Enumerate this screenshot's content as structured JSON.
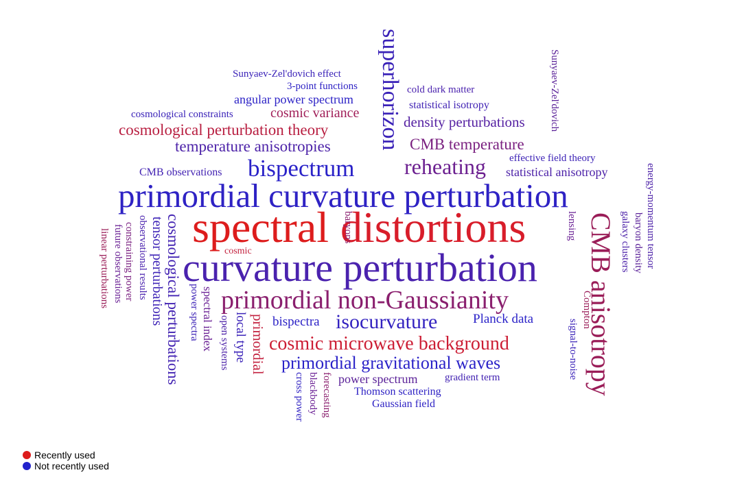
{
  "colors": {
    "recent": "#dd1c1c",
    "not_recent": "#2222cc"
  },
  "legend": {
    "recent_label": "Recently used",
    "not_recent_label": "Not recently used"
  },
  "words": [
    {
      "text": "spectral",
      "color": "#dd1c1c"
    },
    {
      "text": "distortions",
      "color": "#d81d2a"
    },
    {
      "text": "curvature perturbation",
      "color": "#4a22ae"
    },
    {
      "text": "primordial curvature perturbation",
      "color": "#2e22c4"
    },
    {
      "text": "primordial non-Gaussianity",
      "color": "#8a1f6e"
    },
    {
      "text": "CMB anisotropy",
      "color": "#9a1d58"
    },
    {
      "text": "superhorizon",
      "color": "#3a22b8"
    },
    {
      "text": "bispectrum",
      "color": "#2a22c8"
    },
    {
      "text": "reheating",
      "color": "#6c2090"
    },
    {
      "text": "isocurvature",
      "color": "#3322c0"
    },
    {
      "text": "cosmic microwave background",
      "color": "#cc1d34"
    },
    {
      "text": "primordial gravitational waves",
      "color": "#2a22c8"
    },
    {
      "text": "cosmological perturbation theory",
      "color": "#b81e40"
    },
    {
      "text": "temperature anisotropies",
      "color": "#4c22a8"
    },
    {
      "text": "CMB temperature",
      "color": "#7a2080"
    },
    {
      "text": "density perturbations",
      "color": "#5521a2"
    },
    {
      "text": "angular power spectrum",
      "color": "#2c22c6"
    },
    {
      "text": "cosmic variance",
      "color": "#a01e58"
    },
    {
      "text": "cosmological constraints",
      "color": "#3a22b8"
    },
    {
      "text": "3-point functions",
      "color": "#2e22c4"
    },
    {
      "text": "Sunyaev-Zel'dovich effect",
      "color": "#3a22b8"
    },
    {
      "text": "cold dark matter",
      "color": "#4a22ae"
    },
    {
      "text": "statistical isotropy",
      "color": "#4022b4"
    },
    {
      "text": "effective field theory",
      "color": "#3c22b6"
    },
    {
      "text": "statistical anisotropy",
      "color": "#4c21a8"
    },
    {
      "text": "CMB observations",
      "color": "#4222b2"
    },
    {
      "text": "Planck data",
      "color": "#2a22c8"
    },
    {
      "text": "bispectra",
      "color": "#2c22c6"
    },
    {
      "text": "power spectrum",
      "color": "#5a2198"
    },
    {
      "text": "gradient term",
      "color": "#4222b2"
    },
    {
      "text": "Thomson scattering",
      "color": "#2e22c4"
    },
    {
      "text": "Gaussian field",
      "color": "#2e22c4"
    },
    {
      "text": "cosmic",
      "color": "#c21e3c"
    },
    {
      "text": "baryons",
      "color": "#8a1f6e"
    },
    {
      "text": "lensing",
      "color": "#6a2094"
    },
    {
      "text": "Sunyaev-Zel'dovich",
      "color": "#5a2198"
    },
    {
      "text": "energy-momentum tensor",
      "color": "#4c21a8"
    },
    {
      "text": "baryon density",
      "color": "#5a2198"
    },
    {
      "text": "galaxy clusters",
      "color": "#4c21a8"
    },
    {
      "text": "Compton",
      "color": "#9a1d58"
    },
    {
      "text": "signal-to-noise",
      "color": "#3a22b8"
    },
    {
      "text": "cosmological perturbations",
      "color": "#4222b2"
    },
    {
      "text": "tensor perturbations",
      "color": "#3c22b6"
    },
    {
      "text": "observational results",
      "color": "#4a22ae"
    },
    {
      "text": "constraining power",
      "color": "#7a2080"
    },
    {
      "text": "future observations",
      "color": "#6a2094"
    },
    {
      "text": "linear perturbations",
      "color": "#9a1d58"
    },
    {
      "text": "power spectra",
      "color": "#3c22b6"
    },
    {
      "text": "spectral index",
      "color": "#6a2094"
    },
    {
      "text": "local type",
      "color": "#3a22b8"
    },
    {
      "text": "open systems",
      "color": "#4c21a8"
    },
    {
      "text": "primordial",
      "color": "#c21e3c"
    },
    {
      "text": "cross power",
      "color": "#3022c2"
    },
    {
      "text": "blackbody",
      "color": "#6a2094"
    },
    {
      "text": "forecasting",
      "color": "#8a1f6e"
    }
  ]
}
